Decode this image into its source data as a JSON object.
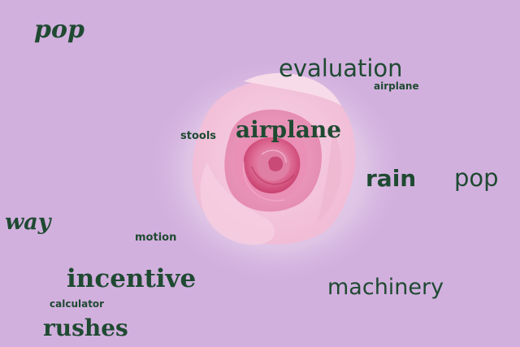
{
  "colors": {
    "background": "#d2b0de",
    "text": "#1f4a32",
    "rose_outer": "#f3c6de",
    "rose_mid": "#ec9cc0",
    "rose_core": "#d7507e"
  },
  "words": {
    "pop_top": "pop",
    "evaluation": "evaluation",
    "airplane_small": "airplane",
    "stools": "stools",
    "airplane_large": "airplane",
    "rain": "rain",
    "pop_right": "pop",
    "way": "way",
    "motion": "motion",
    "incentive": "incentive",
    "machinery": "machinery",
    "calculator": "calculator",
    "rushes": "rushes"
  }
}
